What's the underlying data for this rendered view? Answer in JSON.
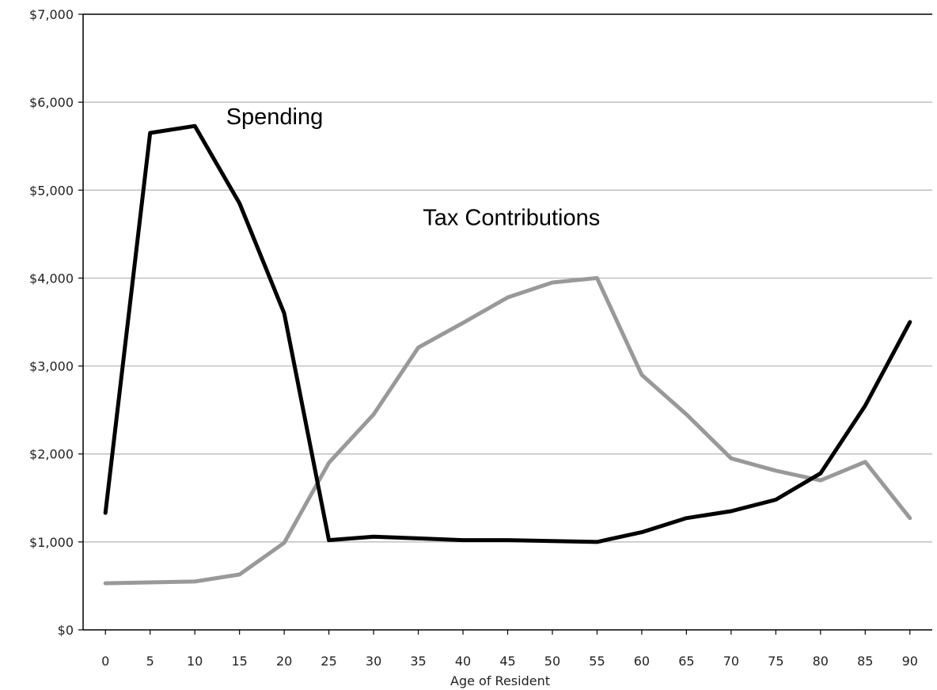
{
  "chart_data": {
    "type": "line",
    "title": "",
    "xlabel": "Age of Resident",
    "ylabel": "",
    "x": [
      0,
      5,
      10,
      15,
      20,
      25,
      30,
      35,
      40,
      45,
      50,
      55,
      60,
      65,
      70,
      75,
      80,
      85,
      90
    ],
    "x_tick_labels": [
      "0",
      "5",
      "10",
      "15",
      "20",
      "25",
      "30",
      "35",
      "40",
      "45",
      "50",
      "55",
      "60",
      "65",
      "70",
      "75",
      "80",
      "85",
      "90"
    ],
    "xlim": [
      -2.5,
      92.5
    ],
    "ylim": [
      0,
      7000
    ],
    "y_ticks": [
      0,
      1000,
      2000,
      3000,
      4000,
      5000,
      6000,
      7000
    ],
    "y_tick_labels": [
      "$0",
      "$1,000",
      "$2,000",
      "$3,000",
      "$4,000",
      "$5,000",
      "$6,000",
      "$7,000"
    ],
    "grid": "horizontal",
    "series": [
      {
        "name": "Spending",
        "color": "#000000",
        "values": [
          1330,
          5650,
          5730,
          4850,
          3600,
          1020,
          1060,
          1040,
          1020,
          1020,
          1010,
          1000,
          1110,
          1270,
          1350,
          1480,
          1780,
          2550,
          3500
        ]
      },
      {
        "name": "Tax Contributions",
        "color": "#999999",
        "values": [
          530,
          540,
          550,
          630,
          990,
          1900,
          2450,
          3210,
          3490,
          3780,
          3950,
          4000,
          2900,
          2450,
          1950,
          1810,
          1700,
          1910,
          1270
        ]
      }
    ],
    "annotations": [
      {
        "text": "Spending",
        "x": 13.5,
        "y": 5750
      },
      {
        "text": "Tax Contributions",
        "x": 35.5,
        "y": 4600
      }
    ]
  }
}
